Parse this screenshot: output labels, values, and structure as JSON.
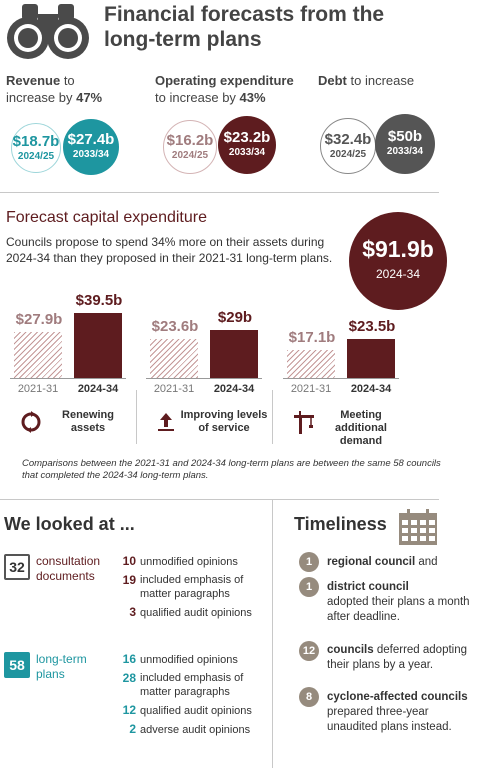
{
  "header": {
    "title_line1": "Financial forecasts from the",
    "title_line2": "long-term plans",
    "icon": "binoculars-icon"
  },
  "stats": {
    "revenue": {
      "label": "Revenue",
      "pre": " to",
      "line2_pre": "increase by ",
      "pct": "47%",
      "old": {
        "amount": "$18.7b",
        "year": "2024/25"
      },
      "new": {
        "amount": "$27.4b",
        "year": "2033/34"
      }
    },
    "opex": {
      "label": "Operating expenditure",
      "line2_pre": "to increase by ",
      "pct": "43%",
      "old": {
        "amount": "$16.2b",
        "year": "2024/25"
      },
      "new": {
        "amount": "$23.2b",
        "year": "2033/34"
      }
    },
    "debt": {
      "label": "Debt",
      "post": " to increase",
      "old": {
        "amount": "$32.4b",
        "year": "2024/25"
      },
      "new": {
        "amount": "$50b",
        "year": "2033/34"
      }
    }
  },
  "colors": {
    "teal": "#1e96a0",
    "maroon": "#5e1c1f",
    "dark_grey": "#555555",
    "taupe": "#968b7e"
  },
  "capital": {
    "title": "Forecast capital expenditure",
    "text": "Councils propose to spend 34% more on their assets during 2024-34 than they proposed in their 2021-31 long-term plans.",
    "total": {
      "amount": "$91.9b",
      "year": "2024-34"
    }
  },
  "chart_data": {
    "type": "bar",
    "categories": [
      "Renewing assets",
      "Improving levels of service",
      "Meeting additional demand"
    ],
    "series": [
      {
        "name": "2021-31",
        "values": [
          27.9,
          23.6,
          17.1
        ],
        "labels": [
          "$27.9b",
          "$23.6b",
          "$17.1b"
        ]
      },
      {
        "name": "2024-34",
        "values": [
          39.5,
          29,
          23.5
        ],
        "labels": [
          "$39.5b",
          "$29b",
          "$23.5b"
        ]
      }
    ],
    "ylim": [
      0,
      39.5
    ],
    "icons": [
      "renew-icon",
      "arrow-up-icon",
      "crane-icon"
    ]
  },
  "note": "Comparisons between the 2021-31 and 2024-34 long-term plans are between the same 58 councils that completed the 2024-34 long-term plans.",
  "looked": {
    "title": "We looked at ...",
    "consultation": {
      "count": "32",
      "label": "consultation documents",
      "items": [
        {
          "n": "10",
          "text": "unmodified opinions"
        },
        {
          "n": "19",
          "text": "included emphasis of matter paragraphs"
        },
        {
          "n": "3",
          "text": "qualified audit opinions"
        }
      ]
    },
    "ltp": {
      "count": "58",
      "label": "long-term plans",
      "items": [
        {
          "n": "16",
          "text": "unmodified opinions"
        },
        {
          "n": "28",
          "text": "included emphasis of matter paragraphs"
        },
        {
          "n": "12",
          "text": "qualified audit opinions"
        },
        {
          "n": "2",
          "text": "adverse audit opinions"
        }
      ]
    }
  },
  "timeliness": {
    "title": "Timeliness",
    "items": [
      {
        "n": "1",
        "bold": "regional council",
        "text": " and"
      },
      {
        "n": "1",
        "bold": "district council",
        "text": "adopted their plans a month after deadline."
      },
      {
        "n": "12",
        "bold": "councils",
        "text": " deferred adopting their plans by a year."
      },
      {
        "n": "8",
        "bold": "cyclone-affected councils",
        "text": "prepared three-year unaudited plans instead."
      }
    ]
  }
}
